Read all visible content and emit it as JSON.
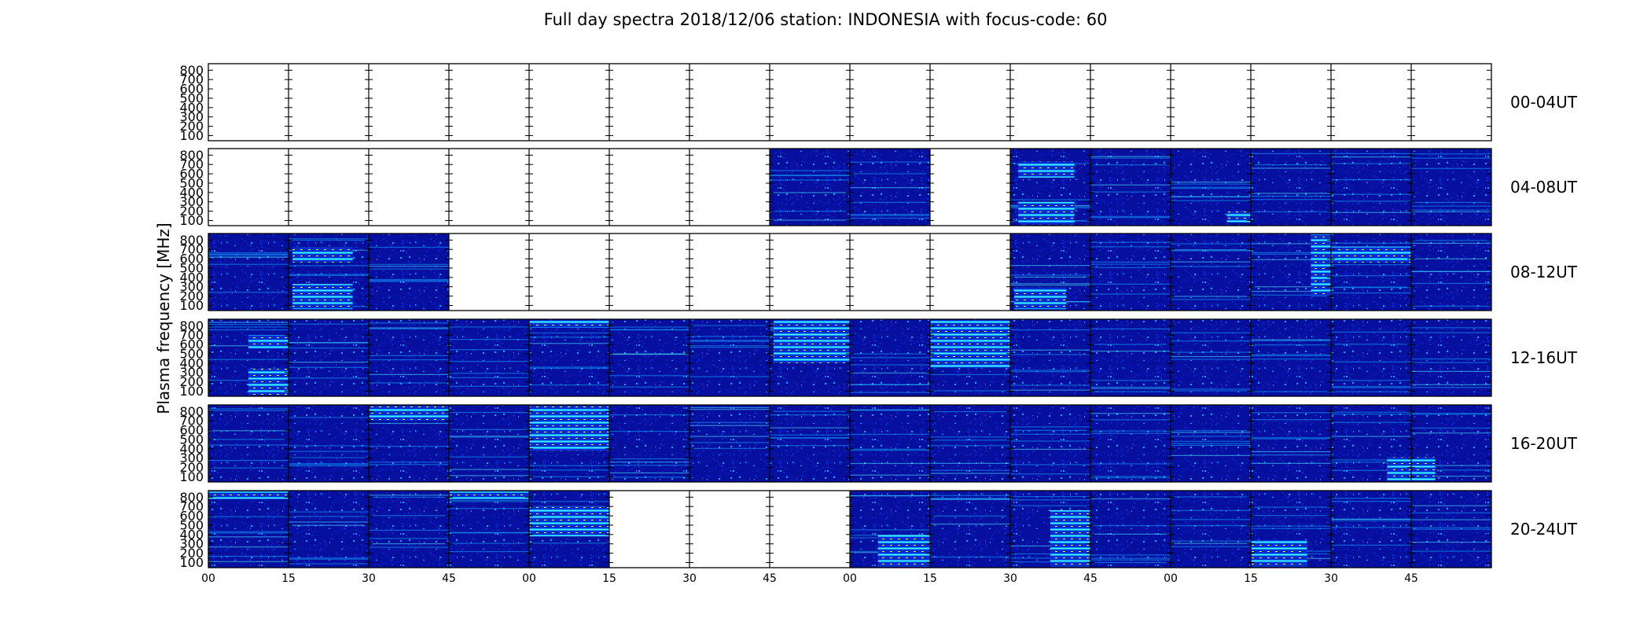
{
  "chart_data": {
    "type": "heatmap",
    "title": "Full day spectra 2018/12/06 station: INDONESIA with focus-code: 60",
    "ylabel": "Plasma frequency [MHz]",
    "xlabel": "",
    "y_ticks": [
      "100",
      "200",
      "300",
      "400",
      "500",
      "600",
      "700",
      "800"
    ],
    "ylim": [
      45,
      870
    ],
    "x_ticks": [
      "00",
      "15",
      "30",
      "45",
      "00",
      "15",
      "30",
      "45",
      "00",
      "15",
      "30",
      "45",
      "00",
      "15",
      "30",
      "45"
    ],
    "colormap": "jet",
    "colors": {
      "background": "#07109e",
      "low": "#0a2bd6",
      "mid": "#10a8ff",
      "high": "#4de8ff",
      "peak": "#d8ff50",
      "blank": "#ffffff"
    },
    "grid": false,
    "legend": "none",
    "rows": [
      {
        "label": "00-04UT",
        "blocks": [
          0,
          0,
          0,
          0,
          0,
          0,
          0,
          0,
          0,
          0,
          0,
          0,
          0,
          0,
          0,
          0
        ],
        "bursts": []
      },
      {
        "label": "04-08UT",
        "blocks": [
          0,
          0,
          0,
          0,
          0,
          0,
          0,
          1,
          1,
          0,
          1,
          1,
          1,
          1,
          1,
          1
        ],
        "bursts": [
          {
            "t0": 10.1,
            "t1": 10.8,
            "f0": 60,
            "f1": 300
          },
          {
            "t0": 10.1,
            "t1": 10.8,
            "f0": 560,
            "f1": 730
          },
          {
            "t0": 12.7,
            "t1": 13.0,
            "f0": 80,
            "f1": 200
          }
        ]
      },
      {
        "label": "08-12UT",
        "blocks": [
          1,
          1,
          1,
          0,
          0,
          0,
          0,
          0,
          0,
          0,
          1,
          1,
          1,
          1,
          1,
          1
        ],
        "bursts": [
          {
            "t0": 1.05,
            "t1": 1.8,
            "f0": 60,
            "f1": 330
          },
          {
            "t0": 1.05,
            "t1": 1.8,
            "f0": 560,
            "f1": 720
          },
          {
            "t0": 10.05,
            "t1": 10.7,
            "f0": 60,
            "f1": 290
          },
          {
            "t0": 13.75,
            "t1": 14.0,
            "f0": 200,
            "f1": 860
          },
          {
            "t0": 14.0,
            "t1": 15.0,
            "f0": 560,
            "f1": 730
          }
        ]
      },
      {
        "label": "12-16UT",
        "blocks": [
          1,
          1,
          1,
          1,
          1,
          1,
          1,
          1,
          1,
          1,
          1,
          1,
          1,
          1,
          1,
          1
        ],
        "bursts": [
          {
            "t0": 0.5,
            "t1": 1.0,
            "f0": 60,
            "f1": 340
          },
          {
            "t0": 0.5,
            "t1": 1.0,
            "f0": 550,
            "f1": 700
          },
          {
            "t0": 4.0,
            "t1": 5.0,
            "f0": 780,
            "f1": 860
          },
          {
            "t0": 7.05,
            "t1": 8.0,
            "f0": 400,
            "f1": 860
          },
          {
            "t0": 9.0,
            "t1": 10.0,
            "f0": 350,
            "f1": 860
          }
        ]
      },
      {
        "label": "16-20UT",
        "blocks": [
          1,
          1,
          1,
          1,
          1,
          1,
          1,
          1,
          1,
          1,
          1,
          1,
          1,
          1,
          1,
          1
        ],
        "bursts": [
          {
            "t0": 2.0,
            "t1": 3.0,
            "f0": 700,
            "f1": 860
          },
          {
            "t0": 4.0,
            "t1": 5.0,
            "f0": 380,
            "f1": 860
          },
          {
            "t0": 14.7,
            "t1": 15.3,
            "f0": 60,
            "f1": 310
          }
        ]
      },
      {
        "label": "20-24UT",
        "blocks": [
          1,
          1,
          1,
          1,
          1,
          0,
          0,
          0,
          1,
          1,
          1,
          1,
          1,
          1,
          1,
          1
        ],
        "bursts": [
          {
            "t0": 0.0,
            "t1": 1.0,
            "f0": 780,
            "f1": 860
          },
          {
            "t0": 3.0,
            "t1": 4.0,
            "f0": 780,
            "f1": 860
          },
          {
            "t0": 4.0,
            "t1": 5.0,
            "f0": 380,
            "f1": 700
          },
          {
            "t0": 8.35,
            "t1": 9.0,
            "f0": 60,
            "f1": 400
          },
          {
            "t0": 10.5,
            "t1": 11.0,
            "f0": 60,
            "f1": 660
          },
          {
            "t0": 13.0,
            "t1": 13.7,
            "f0": 60,
            "f1": 340
          }
        ]
      }
    ]
  }
}
